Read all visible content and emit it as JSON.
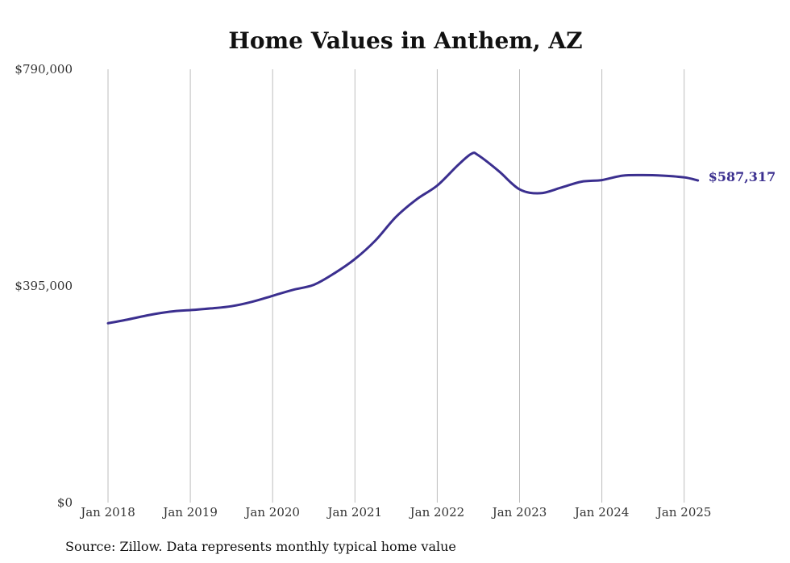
{
  "chart_data": {
    "type": "line",
    "title": "Home Values in Anthem, AZ",
    "xlabel": "",
    "ylabel": "",
    "ylim": [
      0,
      790000
    ],
    "y_ticks": [
      {
        "value": 0,
        "label": "$0"
      },
      {
        "value": 395000,
        "label": "$395,000"
      },
      {
        "value": 790000,
        "label": "$790,000"
      }
    ],
    "x_ticks": [
      "Jan 2018",
      "Jan 2019",
      "Jan 2020",
      "Jan 2021",
      "Jan 2022",
      "Jan 2023",
      "Jan 2024",
      "Jan 2025"
    ],
    "grid": "vertical",
    "series": [
      {
        "color": "#3b2f8f",
        "x": [
          "2018-01",
          "2018-04",
          "2018-07",
          "2018-10",
          "2019-01",
          "2019-04",
          "2019-07",
          "2019-10",
          "2020-01",
          "2020-04",
          "2020-07",
          "2020-10",
          "2021-01",
          "2021-04",
          "2021-07",
          "2021-10",
          "2022-01",
          "2022-04",
          "2022-06",
          "2022-07",
          "2022-10",
          "2023-01",
          "2023-04",
          "2023-07",
          "2023-10",
          "2024-01",
          "2024-04",
          "2024-07",
          "2024-10",
          "2025-01",
          "2025-03"
        ],
        "values": [
          327000,
          334000,
          342000,
          348000,
          351000,
          354000,
          358000,
          366000,
          377000,
          388000,
          397000,
          418000,
          444000,
          478000,
          521000,
          553000,
          578000,
          615000,
          636000,
          633000,
          604000,
          571000,
          564000,
          574000,
          585000,
          588000,
          596000,
          597000,
          596000,
          593000,
          587317
        ]
      }
    ],
    "end_label": "$587,317"
  },
  "source_note": "Source: Zillow. Data represents monthly typical home value"
}
